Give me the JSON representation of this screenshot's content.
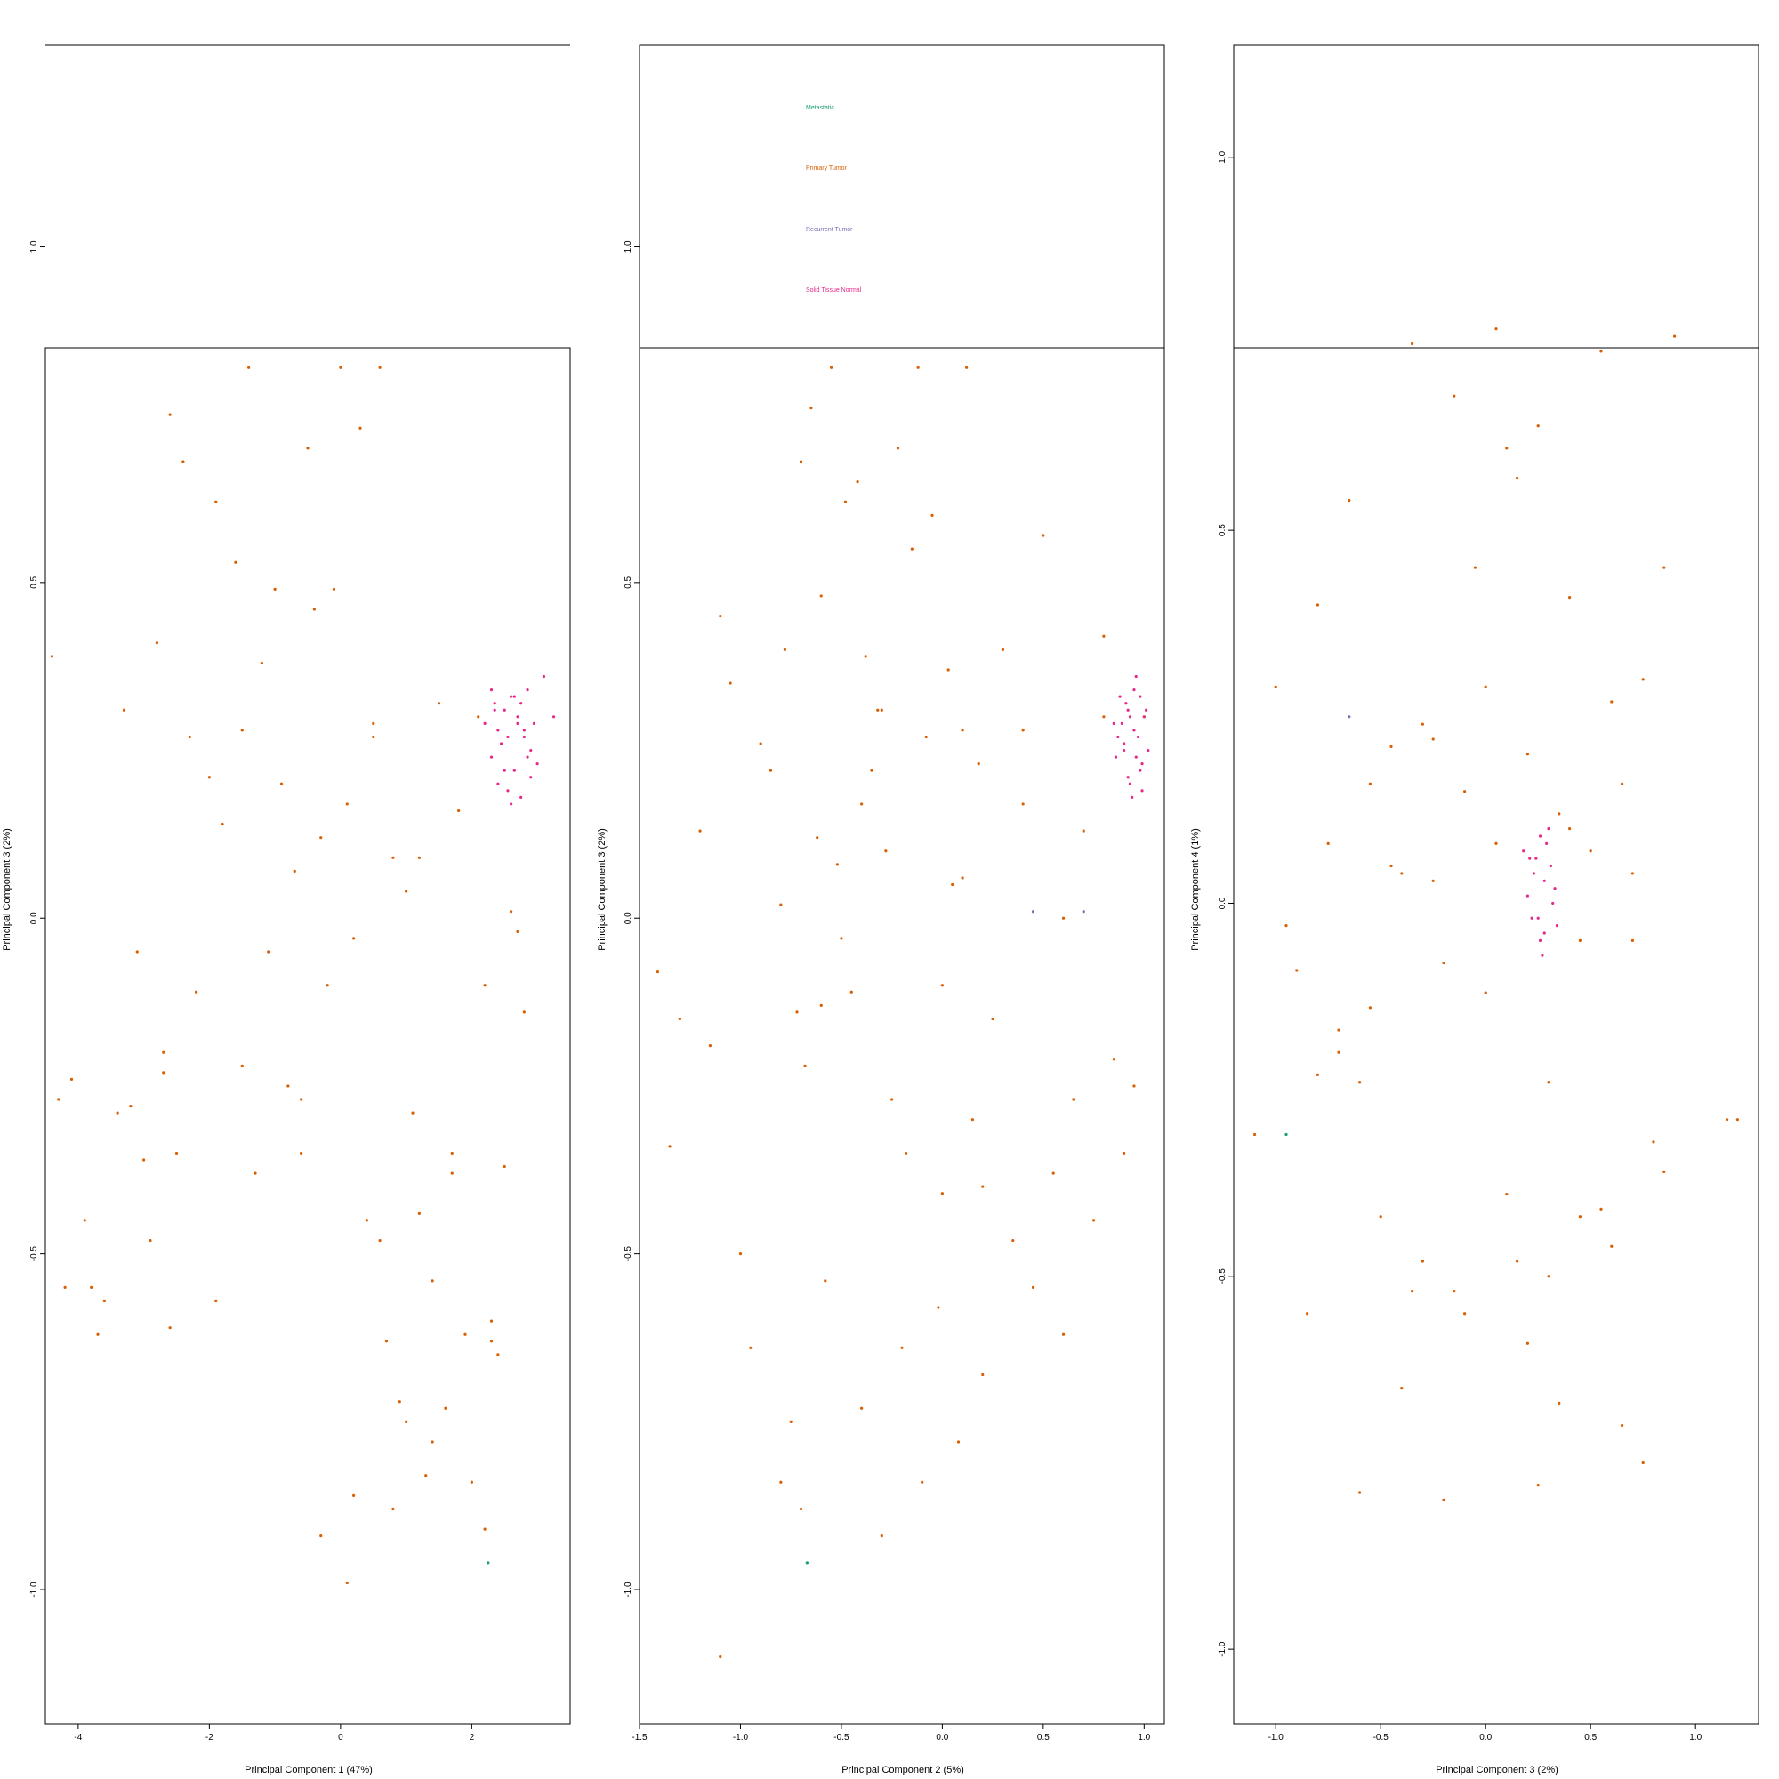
{
  "chart_data": [
    {
      "type": "scatter",
      "xlabel": "Principal Component 1 (47%)",
      "ylabel": "Principal Component 3 (2%)",
      "xlim": [
        -4.5,
        3.5
      ],
      "ylim": [
        -1.2,
        1.3
      ],
      "xticks": [
        "-4",
        "-2",
        "0",
        "2"
      ],
      "yticks": [
        "-1.0",
        "-0.5",
        "0.0",
        "0.5",
        "1.0"
      ],
      "series": [
        {
          "name": "Primary Tumor",
          "color": "#d95f02",
          "x": [
            -4.4,
            -4.3,
            -4.2,
            -4.1,
            -3.9,
            -3.7,
            -3.6,
            -3.4,
            -3.3,
            -3.2,
            -3.0,
            -2.9,
            -2.8,
            -2.7,
            -2.6,
            -2.5,
            -2.4,
            -2.3,
            -2.2,
            -2.0,
            -1.9,
            -1.8,
            -1.6,
            -1.5,
            -1.4,
            -1.2,
            -1.1,
            -1.0,
            -0.9,
            -0.8,
            -0.7,
            -0.6,
            -0.5,
            -0.4,
            -0.3,
            -0.2,
            -0.1,
            0.0,
            0.1,
            0.2,
            0.3,
            0.4,
            0.5,
            0.6,
            0.7,
            0.8,
            0.9,
            1.0,
            1.1,
            1.2,
            1.3,
            1.4,
            1.5,
            1.6,
            1.7,
            1.8,
            1.9,
            2.0,
            2.1,
            2.2,
            2.3,
            2.4,
            2.5,
            2.6,
            2.7,
            2.8,
            -3.8,
            -2.6,
            -1.3,
            0.2,
            0.8,
            1.4,
            2.2,
            -3.1,
            -1.9,
            -0.6,
            0.5,
            1.0,
            1.7,
            2.3,
            0.1,
            -0.3,
            0.6,
            -1.5,
            -2.7,
            1.2
          ],
          "y": [
            0.39,
            -0.27,
            -0.55,
            -0.24,
            -0.45,
            -0.62,
            -0.57,
            -0.29,
            0.31,
            -0.28,
            -0.36,
            -0.48,
            0.41,
            -0.23,
            0.75,
            -0.35,
            0.68,
            0.27,
            -0.11,
            0.21,
            0.62,
            0.14,
            0.53,
            -0.22,
            0.82,
            0.38,
            -0.05,
            0.49,
            0.2,
            -0.25,
            0.07,
            -0.35,
            0.7,
            0.46,
            0.12,
            -0.1,
            0.49,
            0.82,
            0.17,
            -0.03,
            0.73,
            -0.45,
            0.27,
            0.82,
            -0.63,
            0.09,
            -0.72,
            0.04,
            -0.29,
            0.09,
            -0.83,
            -0.54,
            0.32,
            -0.73,
            -0.35,
            0.16,
            -0.62,
            -0.84,
            0.3,
            -0.1,
            -0.6,
            -0.65,
            -0.37,
            0.01,
            -0.02,
            -0.14,
            -0.55,
            -0.61,
            -0.38,
            -0.86,
            -0.88,
            -0.78,
            -0.91,
            -0.05,
            -0.57,
            -0.27,
            0.29,
            -0.75,
            -0.38,
            -0.63,
            -0.99,
            -0.92,
            -0.48,
            0.28,
            -0.2,
            -0.44
          ]
        },
        {
          "name": "Solid Tissue Normal",
          "color": "#e7298a",
          "x": [
            2.2,
            2.3,
            2.35,
            2.4,
            2.5,
            2.55,
            2.6,
            2.65,
            2.7,
            2.75,
            2.8,
            2.85,
            2.9,
            3.0,
            3.1,
            3.25,
            2.3,
            2.45,
            2.6,
            2.75,
            2.9,
            2.4,
            2.55,
            2.7,
            2.85,
            2.35,
            2.5,
            2.65,
            2.8,
            2.95
          ],
          "y": [
            0.29,
            0.24,
            0.32,
            0.2,
            0.31,
            0.27,
            0.33,
            0.22,
            0.3,
            0.18,
            0.28,
            0.34,
            0.25,
            0.23,
            0.36,
            0.3,
            0.34,
            0.26,
            0.17,
            0.32,
            0.21,
            0.28,
            0.19,
            0.29,
            0.24,
            0.31,
            0.22,
            0.33,
            0.27,
            0.29
          ]
        },
        {
          "name": "Metastatic",
          "color": "#1b9e77",
          "x": [
            2.25
          ],
          "y": [
            -0.96
          ]
        }
      ]
    },
    {
      "type": "scatter",
      "xlabel": "Principal Component 2 (5%)",
      "ylabel": "Principal Component 3 (2%)",
      "xlim": [
        -1.5,
        1.1
      ],
      "ylim": [
        -1.2,
        1.3
      ],
      "xticks": [
        "-1.5",
        "-1.0",
        "-0.5",
        "0.0",
        "0.5",
        "1.0"
      ],
      "yticks": [
        "-1.0",
        "-0.5",
        "0.0",
        "0.5",
        "1.0"
      ],
      "legend": [
        "Metastatic",
        "Primary Tumor",
        "Recurrent Tumor",
        "Solid Tissue Normal"
      ],
      "series": [
        {
          "name": "Metastatic",
          "color": "#1b9e77",
          "x": [
            -0.67
          ],
          "y": [
            -0.96
          ]
        },
        {
          "name": "Primary Tumor",
          "color": "#d95f02",
          "x": [
            -1.41,
            -1.35,
            -1.3,
            -1.2,
            -1.15,
            -1.1,
            -1.05,
            -1.0,
            -0.95,
            -0.9,
            -0.85,
            -0.8,
            -0.78,
            -0.75,
            -0.72,
            -0.7,
            -0.68,
            -0.65,
            -0.62,
            -0.6,
            -0.58,
            -0.55,
            -0.52,
            -0.5,
            -0.48,
            -0.45,
            -0.42,
            -0.4,
            -0.38,
            -0.35,
            -0.32,
            -0.3,
            -0.28,
            -0.25,
            -0.22,
            -0.2,
            -0.18,
            -0.15,
            -0.12,
            -0.1,
            -0.08,
            -0.05,
            -0.02,
            0.0,
            0.03,
            0.05,
            0.08,
            0.1,
            0.12,
            0.15,
            0.18,
            0.2,
            0.25,
            0.3,
            0.35,
            0.4,
            0.45,
            0.5,
            0.55,
            0.6,
            0.65,
            0.7,
            0.75,
            0.8,
            0.85,
            0.9,
            0.95,
            1.0,
            -1.1,
            -0.7,
            -0.4,
            0.1,
            -0.6,
            0.2,
            0.6,
            -0.3,
            0.4,
            -0.8,
            0.0,
            0.8
          ],
          "y": [
            -0.08,
            -0.34,
            -0.15,
            0.13,
            -0.19,
            0.45,
            0.35,
            -0.5,
            -0.64,
            0.26,
            0.22,
            0.02,
            0.4,
            -0.75,
            -0.14,
            0.68,
            -0.22,
            0.76,
            0.12,
            0.48,
            -0.54,
            0.82,
            0.08,
            -0.03,
            0.62,
            -0.11,
            0.65,
            -0.73,
            0.39,
            0.22,
            0.31,
            -0.92,
            0.1,
            -0.27,
            0.7,
            -0.64,
            -0.35,
            0.55,
            0.82,
            -0.84,
            0.27,
            0.6,
            -0.58,
            -0.1,
            0.37,
            0.05,
            -0.78,
            0.28,
            0.82,
            -0.3,
            0.23,
            -0.4,
            -0.15,
            0.4,
            -0.48,
            0.17,
            -0.55,
            0.57,
            -0.38,
            -0.62,
            -0.27,
            0.13,
            -0.45,
            0.3,
            -0.21,
            -0.35,
            -0.25,
            0.3,
            -1.1,
            -0.88,
            0.17,
            0.06,
            -0.13,
            -0.68,
            0.0,
            0.31,
            0.28,
            -0.84,
            -0.41,
            0.42
          ]
        },
        {
          "name": "Solid Tissue Normal",
          "color": "#e7298a",
          "x": [
            0.85,
            0.88,
            0.9,
            0.92,
            0.93,
            0.95,
            0.97,
            0.98,
            1.0,
            1.02,
            0.86,
            0.89,
            0.91,
            0.94,
            0.96,
            0.99,
            1.01,
            0.87,
            0.92,
            0.95,
            0.98,
            0.9,
            0.93,
            0.96,
            0.99
          ],
          "y": [
            0.29,
            0.33,
            0.25,
            0.31,
            0.2,
            0.34,
            0.27,
            0.22,
            0.3,
            0.25,
            0.24,
            0.29,
            0.32,
            0.18,
            0.36,
            0.23,
            0.31,
            0.27,
            0.21,
            0.28,
            0.33,
            0.26,
            0.3,
            0.24,
            0.19
          ]
        },
        {
          "name": "Recurrent Tumor",
          "color": "#7570b3",
          "x": [
            0.45,
            0.7
          ],
          "y": [
            0.01,
            0.01
          ]
        }
      ]
    },
    {
      "type": "scatter",
      "xlabel": "Principal Component 3 (2%)",
      "ylabel": "Principal Component 4 (1%)",
      "xlim": [
        -1.2,
        1.3
      ],
      "ylim": [
        -1.1,
        1.15
      ],
      "xticks": [
        "-1.0",
        "-0.5",
        "0.0",
        "0.5",
        "1.0"
      ],
      "yticks": [
        "-1.0",
        "-0.5",
        "0.0",
        "0.5",
        "1.0"
      ],
      "series": [
        {
          "name": "Primary Tumor",
          "color": "#d95f02",
          "x": [
            -1.1,
            -1.0,
            -0.95,
            -0.9,
            -0.85,
            -0.8,
            -0.75,
            -0.7,
            -0.65,
            -0.6,
            -0.55,
            -0.5,
            -0.45,
            -0.4,
            -0.35,
            -0.3,
            -0.25,
            -0.2,
            -0.15,
            -0.1,
            -0.05,
            0.0,
            0.05,
            0.1,
            0.15,
            0.2,
            0.25,
            0.3,
            0.35,
            0.4,
            0.45,
            0.5,
            0.55,
            0.6,
            0.65,
            0.7,
            0.75,
            0.8,
            0.85,
            0.9,
            1.15,
            1.2,
            -0.6,
            -0.3,
            0.1,
            0.4,
            0.7,
            -0.45,
            0.2,
            -0.2,
            0.55,
            -0.7,
            0.3,
            -0.1,
            0.65,
            -0.35,
            0.05,
            0.45,
            -0.55,
            0.25,
            0.85,
            -0.25,
            0.0,
            0.35,
            -0.8,
            0.6,
            -0.15,
            0.15,
            0.75,
            -0.4
          ],
          "y": [
            -0.31,
            0.29,
            -0.03,
            -0.09,
            -0.55,
            -0.23,
            0.08,
            -0.2,
            0.54,
            -0.79,
            0.16,
            -0.42,
            0.21,
            -0.65,
            0.75,
            -0.48,
            0.22,
            -0.08,
            0.68,
            -0.55,
            0.45,
            -0.12,
            0.77,
            0.61,
            0.57,
            -0.59,
            0.64,
            -0.24,
            -0.67,
            0.41,
            -0.42,
            0.07,
            0.74,
            -0.46,
            -0.7,
            0.04,
            0.3,
            -0.32,
            0.45,
            0.76,
            -0.29,
            -0.29,
            -0.24,
            0.24,
            -0.39,
            0.1,
            -0.05,
            0.05,
            0.2,
            -0.8,
            -0.41,
            -0.17,
            -0.5,
            0.15,
            0.16,
            -0.52,
            0.08,
            -0.05,
            -0.14,
            -0.78,
            -0.36,
            0.03,
            0.29,
            0.12,
            0.4,
            0.27,
            -0.52,
            -0.48,
            -0.75,
            0.04
          ]
        },
        {
          "name": "Solid Tissue Normal",
          "color": "#e7298a",
          "x": [
            0.18,
            0.2,
            0.22,
            0.24,
            0.26,
            0.28,
            0.3,
            0.32,
            0.34,
            0.23,
            0.27,
            0.29,
            0.31,
            0.25,
            0.21,
            0.33,
            0.28,
            0.26
          ],
          "y": [
            0.07,
            0.01,
            -0.02,
            0.06,
            -0.05,
            0.03,
            0.1,
            0.0,
            -0.03,
            0.04,
            -0.07,
            0.08,
            0.05,
            -0.02,
            0.06,
            0.02,
            -0.04,
            0.09
          ]
        },
        {
          "name": "Recurrent Tumor",
          "color": "#7570b3",
          "x": [
            -0.65
          ],
          "y": [
            0.25
          ]
        },
        {
          "name": "Metastatic",
          "color": "#1b9e77",
          "x": [
            -0.95
          ],
          "y": [
            -0.31
          ]
        }
      ]
    }
  ]
}
